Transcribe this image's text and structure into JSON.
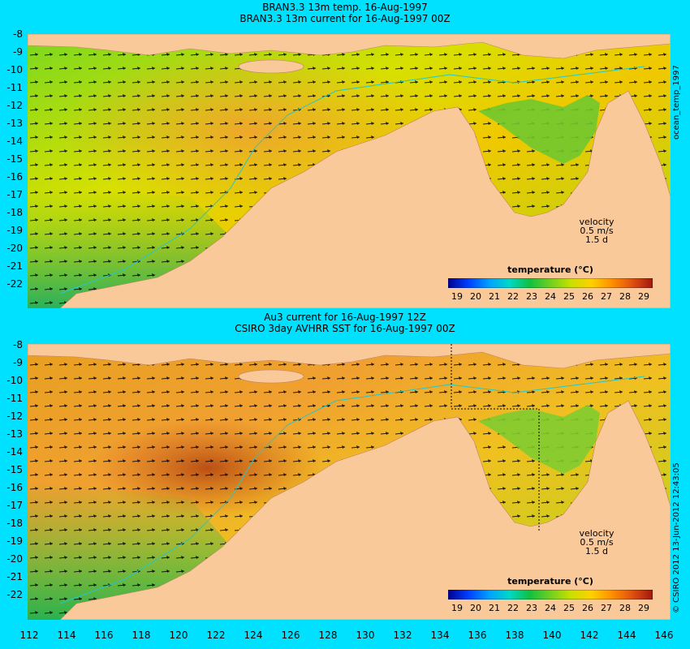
{
  "top_panel": {
    "title_line1": "BRAN3.3 13m temp. 16-Aug-1997",
    "title_line2": "BRAN3.3 13m current for 16-Aug-1997 00Z",
    "side_label": "ocean_temp_1997",
    "velocity_label": "velocity",
    "velocity_scale": "0.5 m/s",
    "velocity_duration": "1.5 d",
    "colorbar_title": "temperature (°C)"
  },
  "bottom_panel": {
    "title_line1": "Au3 current for 16-Aug-1997 12Z",
    "title_line2": "CSIRO 3day AVHRR SST for 16-Aug-1997 00Z",
    "side_label": "© CSIRO 2012  13-Jun-2012 12:43:05",
    "velocity_label": "velocity",
    "velocity_scale": "0.5 m/s",
    "velocity_duration": "1.5 d",
    "colorbar_title": "temperature (°C)"
  },
  "colorbar_ticks": [
    "19",
    "20",
    "21",
    "22",
    "23",
    "24",
    "25",
    "26",
    "27",
    "28",
    "29"
  ],
  "colorbar_colors": [
    "#0000a0",
    "#0050ff",
    "#00b0ff",
    "#00e0c0",
    "#10c040",
    "#60d020",
    "#c0e000",
    "#ffd000",
    "#ffa000",
    "#ff6000",
    "#c02000"
  ],
  "lat_ticks": [
    "-8",
    "-9",
    "-10",
    "-11",
    "-12",
    "-13",
    "-14",
    "-15",
    "-16",
    "-17",
    "-18",
    "-19",
    "-20",
    "-21",
    "-22"
  ],
  "lon_ticks": [
    "112",
    "114",
    "116",
    "118",
    "120",
    "122",
    "124",
    "126",
    "128",
    "130",
    "132",
    "134",
    "136",
    "138",
    "140",
    "142",
    "144",
    "146"
  ],
  "colors": {
    "background": "#00e0ff",
    "land": "#f9c99a",
    "coast_line": "#20c8d0"
  }
}
